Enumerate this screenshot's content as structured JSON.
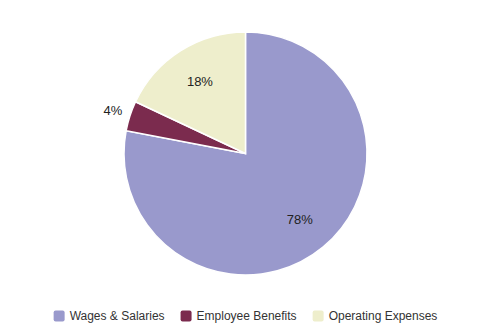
{
  "chart_data": {
    "type": "pie",
    "categories": [
      "Wages & Salaries",
      "Employee Benefits",
      "Operating Expenses"
    ],
    "values": [
      78,
      4,
      18
    ],
    "value_labels": [
      "78%",
      "4%",
      "18%"
    ],
    "colors": [
      "#9999cc",
      "#7b2b4e",
      "#eeeecc"
    ],
    "data_labels": true,
    "legend": "bottom"
  }
}
